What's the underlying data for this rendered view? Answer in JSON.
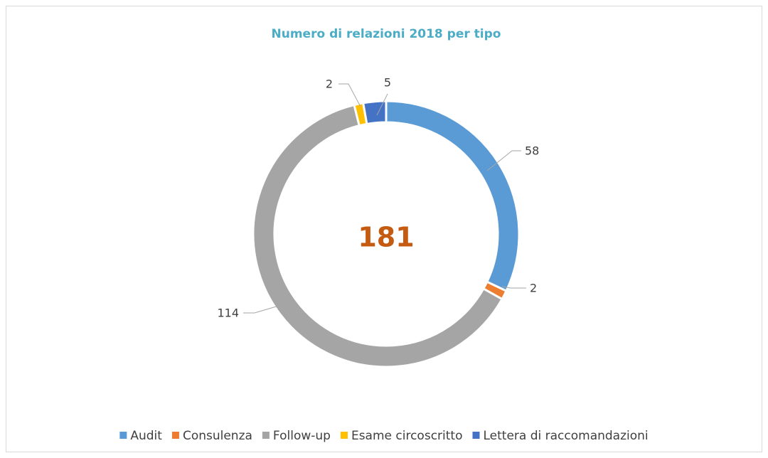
{
  "chart_data": {
    "type": "donut",
    "title": "Numero di relazioni 2018 per tipo",
    "categories": [
      "Audit",
      "Consulenza",
      "Follow-up",
      "Esame circoscritto",
      "Lettera di raccomandazioni"
    ],
    "values": [
      58,
      2,
      114,
      2,
      5
    ],
    "colors": [
      "#5b9bd5",
      "#ed7d31",
      "#a5a5a5",
      "#ffc000",
      "#4472c4"
    ],
    "center_label": "181",
    "legend": "bottom"
  }
}
